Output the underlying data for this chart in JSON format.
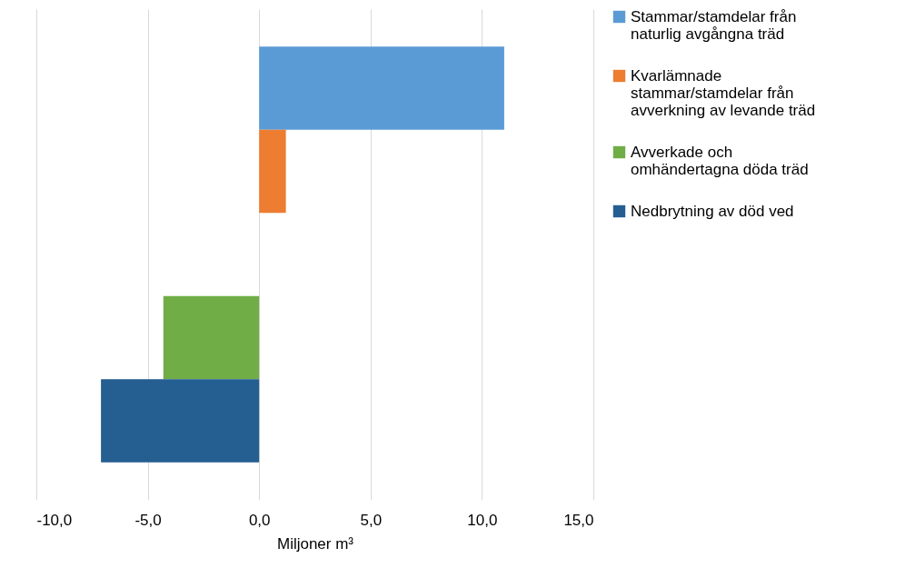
{
  "chart_data": {
    "type": "bar",
    "orientation": "horizontal",
    "xlabel": "Miljoner m³",
    "categories": [
      null,
      null,
      null,
      null,
      null
    ],
    "series": [
      {
        "name": "Stammar/stamdelar från naturlig avgångna träd",
        "color": "#5b9bd5",
        "values": [
          11.0,
          null,
          null,
          null,
          null
        ]
      },
      {
        "name": "Kvarlämnade stammar/stamdelar från avverkning av levande träd",
        "color": "#ed7d31",
        "values": [
          null,
          1.2,
          null,
          null,
          null
        ]
      },
      {
        "name": "Avverkade och omhändertagna döda träd",
        "color": "#70ad47",
        "values": [
          null,
          null,
          null,
          -4.3,
          null
        ]
      },
      {
        "name": "Nedbrytning av död ved",
        "color": "#255e91",
        "values": [
          null,
          null,
          null,
          null,
          -7.1
        ]
      }
    ],
    "xlim": [
      -10,
      15
    ],
    "xticks": [
      {
        "value": -10,
        "label": "-10,0"
      },
      {
        "value": -5,
        "label": "-5,0"
      },
      {
        "value": 0,
        "label": "0,0"
      },
      {
        "value": 5,
        "label": "5,0"
      },
      {
        "value": 10,
        "label": "10,0"
      },
      {
        "value": 15,
        "label": "15,0"
      }
    ],
    "grid": "x",
    "legend": "right",
    "tick_labels": "x"
  }
}
